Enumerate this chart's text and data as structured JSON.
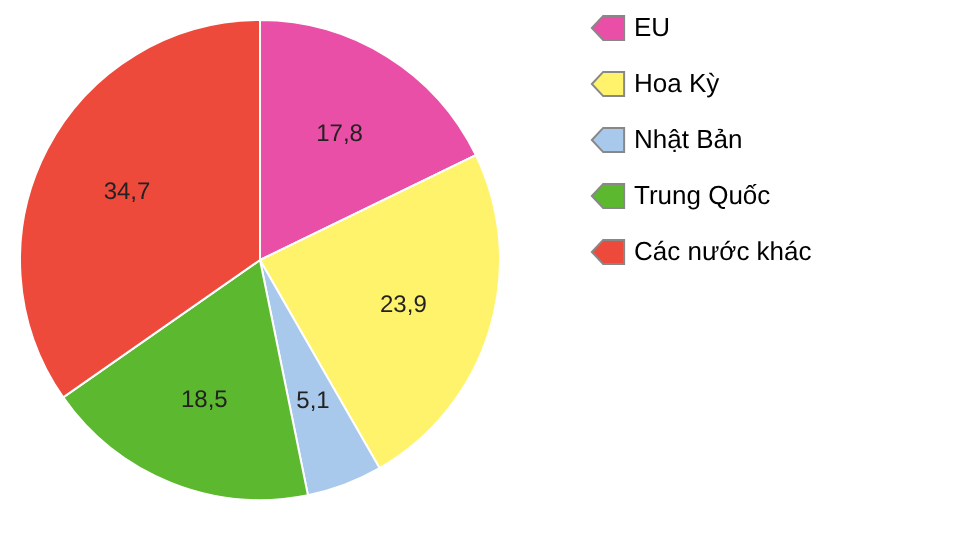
{
  "chart_data": {
    "type": "pie",
    "categories": [
      "EU",
      "Hoa Kỳ",
      "Nhật Bản",
      "Trung Quốc",
      "Các nước khác"
    ],
    "values": [
      17.8,
      23.9,
      5.1,
      18.5,
      34.7
    ],
    "colors": [
      "#e94fa6",
      "#fff36b",
      "#a9c9ec",
      "#5cb82f",
      "#ee4a3c"
    ],
    "value_labels": [
      "17,8",
      "23,9",
      "5,1",
      "18,5",
      "34,7"
    ],
    "legend": "right"
  }
}
